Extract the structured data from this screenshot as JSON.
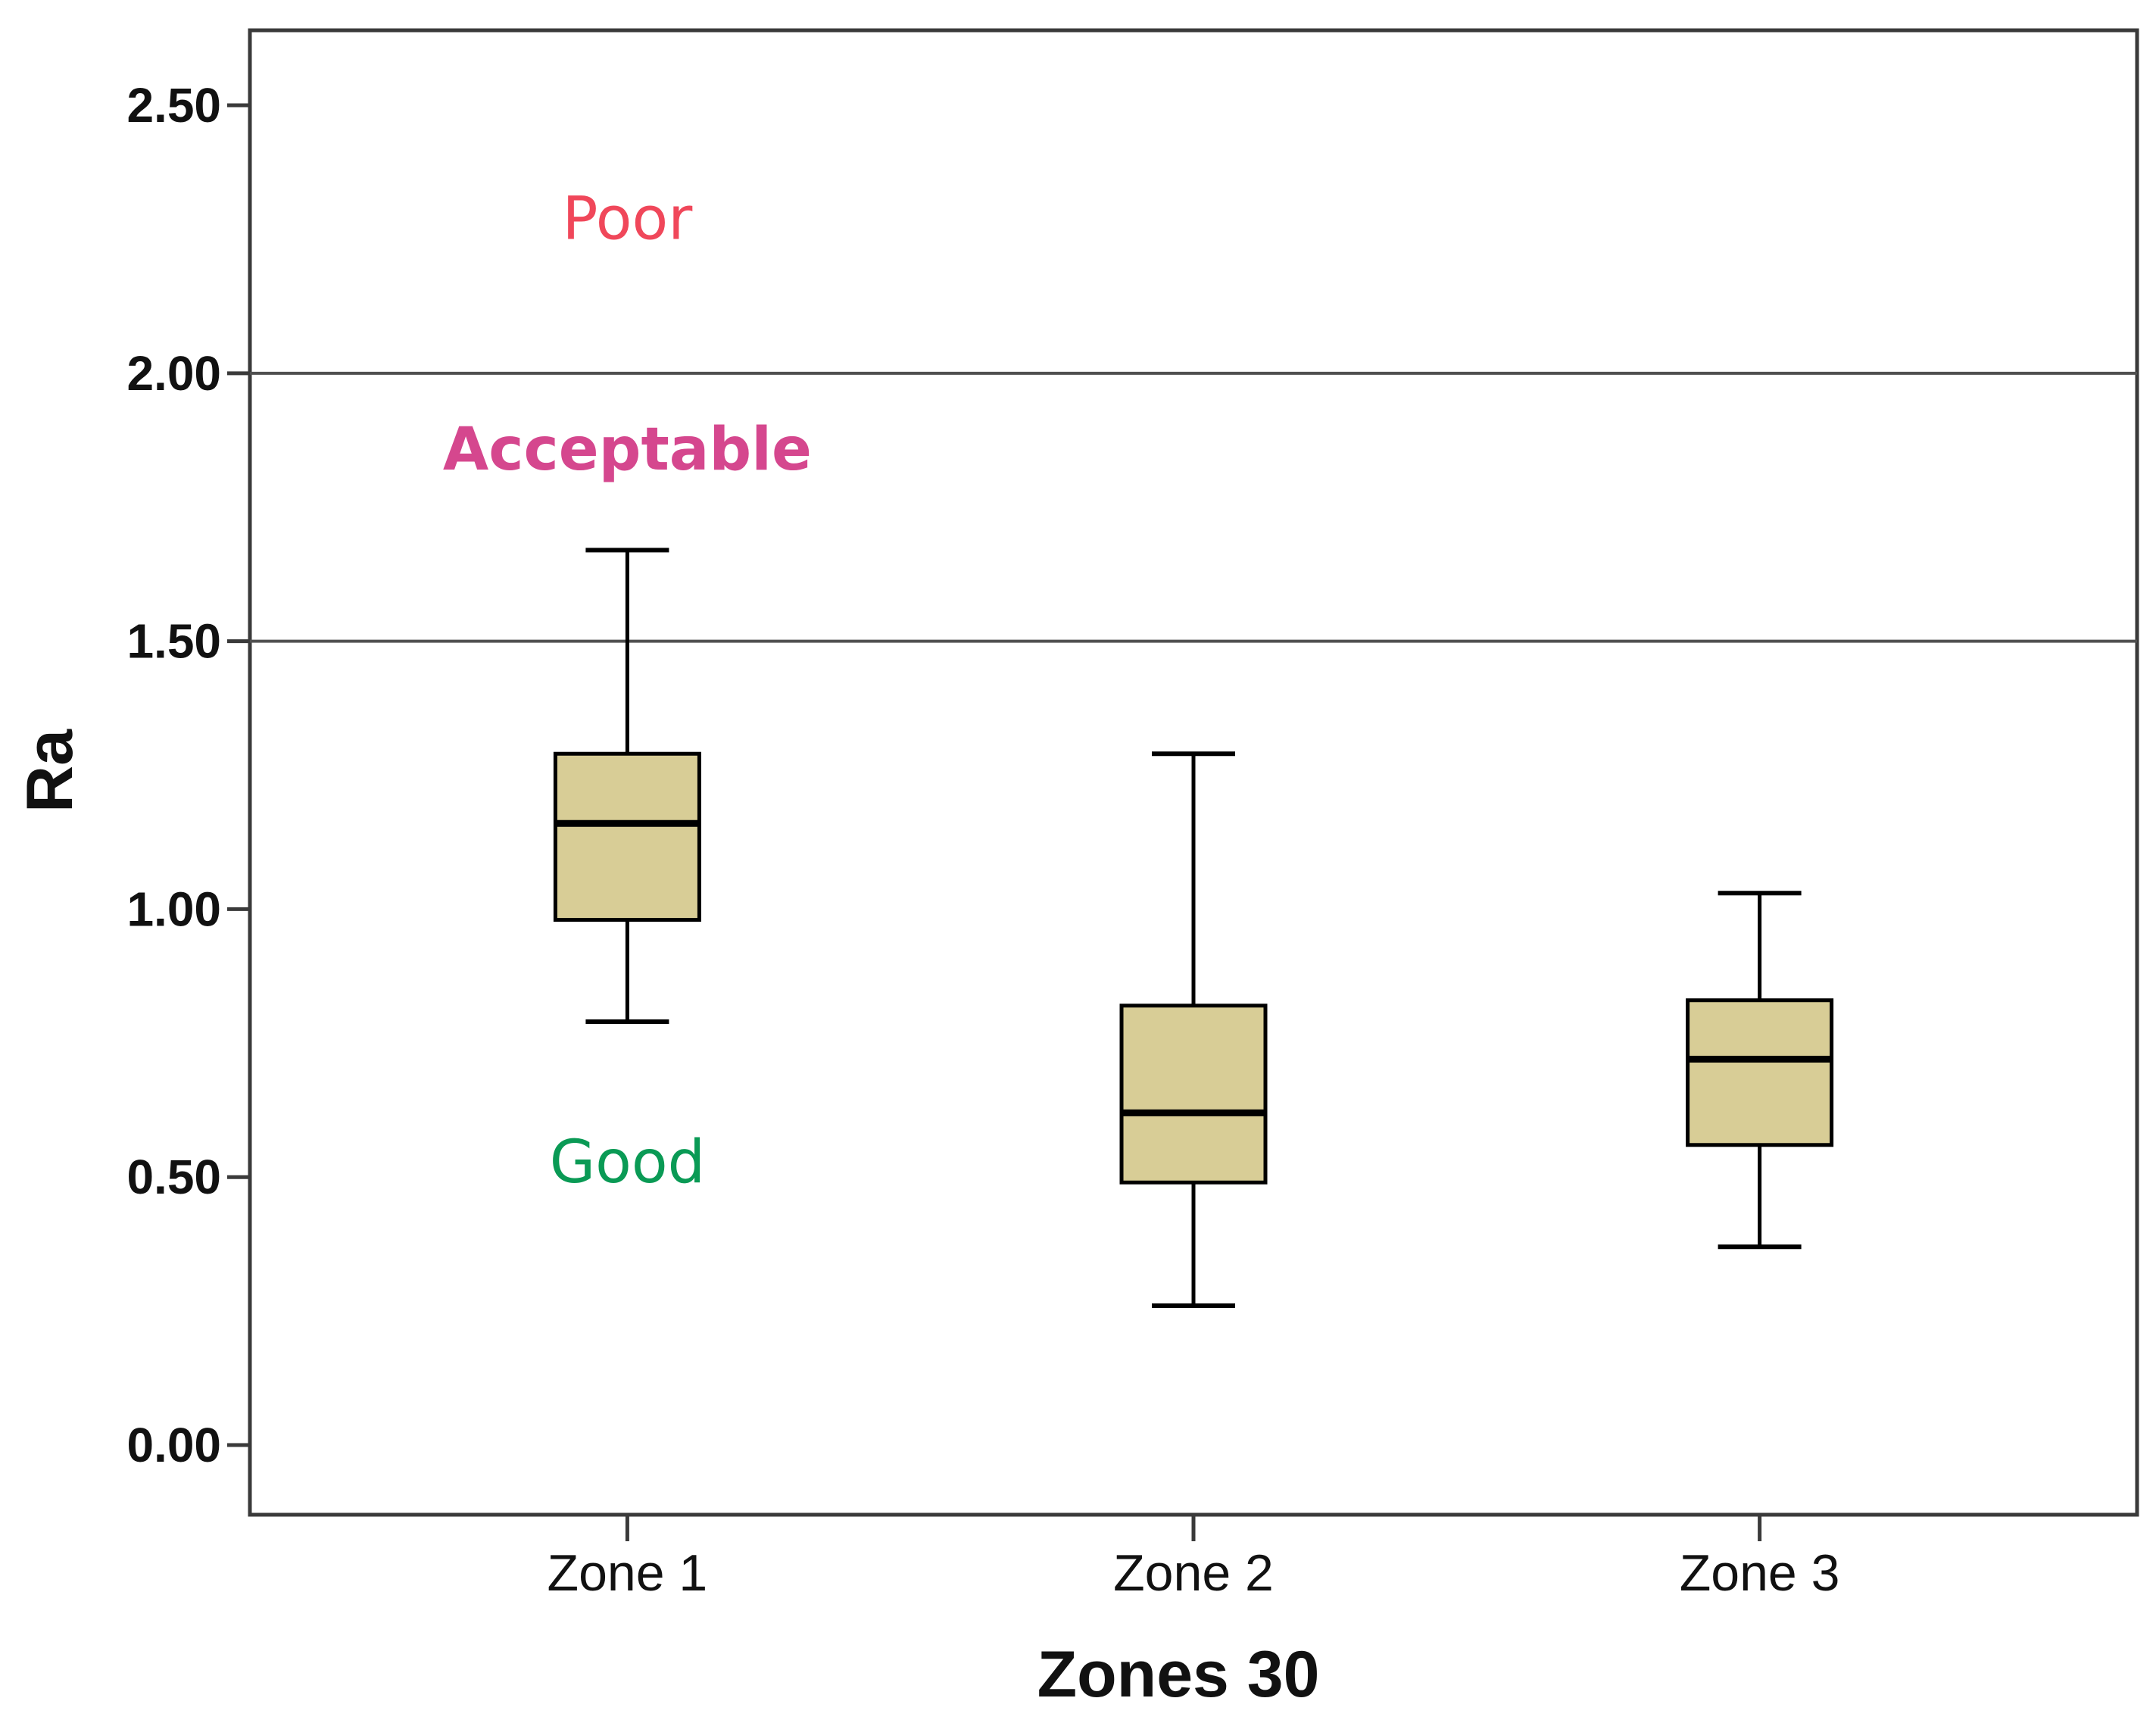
{
  "chart_data": {
    "type": "boxplot",
    "title": "",
    "xlabel": "Zones 30",
    "ylabel": "Ra",
    "ylim": [
      -0.13,
      2.64
    ],
    "yticks": [
      0.0,
      0.5,
      1.0,
      1.5,
      2.0,
      2.5
    ],
    "ytick_labels": [
      "0.00",
      "0.50",
      "1.00",
      "1.50",
      "2.00",
      "2.50"
    ],
    "categories": [
      "Zone 1",
      "Zone 2",
      "Zone 3"
    ],
    "boxes": [
      {
        "category": "Zone 1",
        "whisker_low": 0.79,
        "q1": 0.98,
        "median": 1.16,
        "q3": 1.29,
        "whisker_high": 1.67
      },
      {
        "category": "Zone 2",
        "whisker_low": 0.26,
        "q1": 0.49,
        "median": 0.62,
        "q3": 0.82,
        "whisker_high": 1.29
      },
      {
        "category": "Zone 3",
        "whisker_low": 0.37,
        "q1": 0.56,
        "median": 0.72,
        "q3": 0.83,
        "whisker_high": 1.03
      }
    ],
    "reference_lines": [
      1.5,
      2.0
    ],
    "region_labels": [
      {
        "text": "Poor",
        "y": 2.29,
        "color": "#f0475a"
      },
      {
        "text": "Acceptable",
        "y": 1.86,
        "color": "#d5478e"
      },
      {
        "text": "Good",
        "y": 0.53,
        "color": "#0a9a55"
      }
    ],
    "box_fill": "#d8cd96",
    "grid": false
  }
}
